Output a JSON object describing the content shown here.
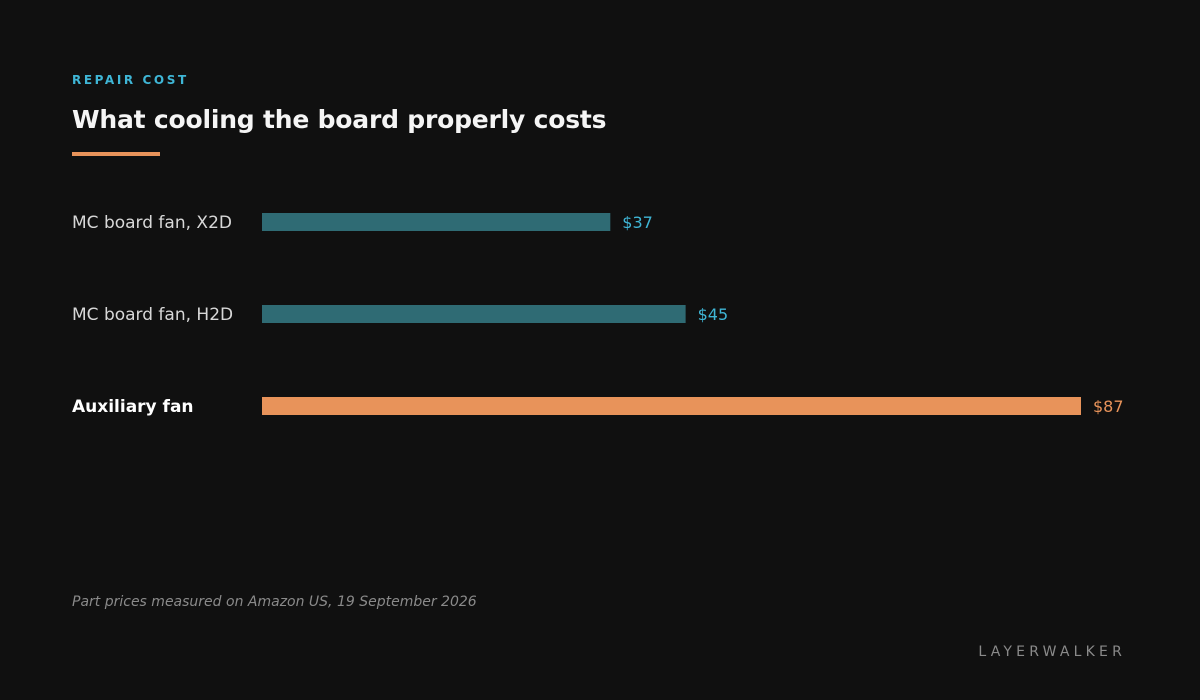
{
  "header": {
    "eyebrow": "REPAIR COST",
    "title": "What cooling the board properly costs"
  },
  "colors": {
    "background": "#101010",
    "accent_blue": "#3fb6d6",
    "bar_teal": "#2f6b74",
    "highlight_orange": "#e8935a"
  },
  "chart_data": {
    "type": "bar",
    "orientation": "horizontal",
    "categories": [
      "MC board fan, X2D",
      "MC board fan, H2D",
      "Auxiliary fan"
    ],
    "values": [
      37,
      45,
      87
    ],
    "value_labels": [
      "$37",
      "$45",
      "$87"
    ],
    "highlighted": [
      false,
      false,
      true
    ],
    "xlim": [
      0,
      87
    ],
    "grid": false,
    "title": "What cooling the board properly costs"
  },
  "footer": {
    "note": "Part prices measured on Amazon US, 19 September 2026",
    "brand": "LAYERWALKER"
  }
}
